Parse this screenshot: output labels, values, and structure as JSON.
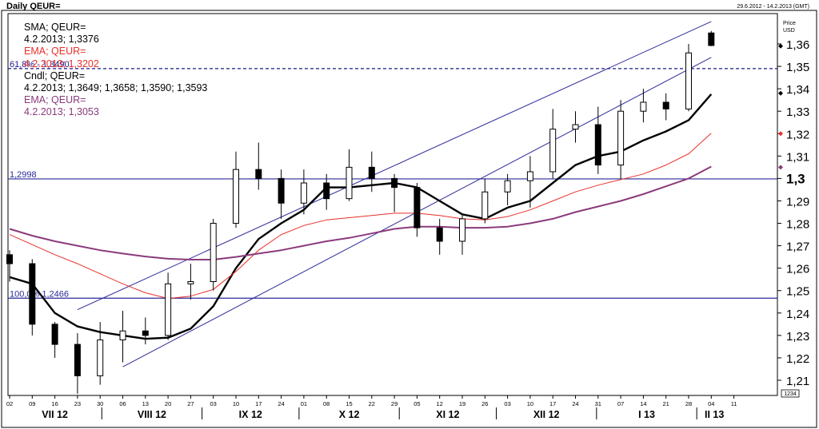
{
  "header": {
    "title": "Daily QEUR=",
    "date_range": "29.6.2012 - 14.2.2013 (GMT)",
    "price_label": "Price",
    "currency_label": "USD"
  },
  "legend": [
    {
      "name": "SMA; QEUR=",
      "value": "4.2.2013; 1,3376",
      "color": "#000000"
    },
    {
      "name": "EMA; QEUR=",
      "value": "4.2.2013; 1,3202",
      "color": "#e8302a"
    },
    {
      "name": "Cndl; QEUR=",
      "value": "4.2.2013; 1,3649; 1,3658; 1,3590; 1,3593",
      "color": "#000000"
    },
    {
      "name": "EMA; QEUR=",
      "value": "4.2.2013; 1,3053",
      "color": "#8b3a7c"
    }
  ],
  "chart_data": {
    "type": "candlestick",
    "y_label": "Price USD",
    "ylim": [
      1.2,
      1.37
    ],
    "y_ticks": [
      "1,21",
      "1,22",
      "1,23",
      "1,24",
      "1,25",
      "1,26",
      "1,27",
      "1,28",
      "1,29",
      "1,3",
      "1,31",
      "1,32",
      "1,33",
      "1,34",
      "1,35",
      "1,36"
    ],
    "x_day_ticks": [
      "02",
      "09",
      "16",
      "23",
      "30",
      "06",
      "13",
      "20",
      "27",
      "03",
      "10",
      "17",
      "24",
      "01",
      "08",
      "15",
      "22",
      "29",
      "05",
      "12",
      "19",
      "26",
      "03",
      "10",
      "17",
      "24",
      "31",
      "07",
      "14",
      "21",
      "28",
      "04",
      "11"
    ],
    "x_month_labels": [
      "VII 12",
      "VIII 12",
      "IX 12",
      "X 12",
      "XI 12",
      "XII 12",
      "I 13",
      "II 13"
    ],
    "corner_label": "1234",
    "horizontal_lines": [
      {
        "label": "61,8% - 1,3490",
        "value": 1.349,
        "style": "dashed",
        "color": "#1a1a8c"
      },
      {
        "label": "1,2998",
        "value": 1.2998,
        "style": "solid",
        "color": "#2a2a9a"
      },
      {
        "label": "100,0% 1,2466",
        "value": 1.2466,
        "style": "solid",
        "color": "#2a2a9a"
      }
    ],
    "trend_channel": {
      "upper": [
        [
          "2012-07-23",
          1.2415
        ],
        [
          "2013-02-04",
          1.37
        ]
      ],
      "lower": [
        [
          "2012-08-06",
          1.216
        ],
        [
          "2013-02-04",
          1.354
        ]
      ],
      "color": "#2a2a9a"
    },
    "last_value_markers": [
      {
        "value": 1.359,
        "color": "#000000"
      },
      {
        "value": 1.338,
        "color": "#000000"
      },
      {
        "value": 1.32,
        "color": "#e8302a"
      },
      {
        "value": 1.305,
        "color": "#8b3a7c"
      }
    ],
    "series": [
      {
        "name": "SMA; QEUR=",
        "color": "#000000",
        "kind": "line",
        "points": [
          [
            "2012-07-02",
            1.256
          ],
          [
            "2012-07-09",
            1.253
          ],
          [
            "2012-07-16",
            1.24
          ],
          [
            "2012-07-23",
            1.234
          ],
          [
            "2012-07-30",
            1.2315
          ],
          [
            "2012-08-06",
            1.23
          ],
          [
            "2012-08-13",
            1.2285
          ],
          [
            "2012-08-20",
            1.229
          ],
          [
            "2012-08-27",
            1.233
          ],
          [
            "2012-09-03",
            1.243
          ],
          [
            "2012-09-10",
            1.26
          ],
          [
            "2012-09-17",
            1.273
          ],
          [
            "2012-09-24",
            1.28
          ],
          [
            "2012-10-01",
            1.286
          ],
          [
            "2012-10-08",
            1.296
          ],
          [
            "2012-10-15",
            1.296
          ],
          [
            "2012-10-22",
            1.297
          ],
          [
            "2012-10-29",
            1.298
          ],
          [
            "2012-11-05",
            1.296
          ],
          [
            "2012-11-12",
            1.29
          ],
          [
            "2012-11-19",
            1.284
          ],
          [
            "2012-11-26",
            1.282
          ],
          [
            "2012-12-03",
            1.287
          ],
          [
            "2012-12-10",
            1.29
          ],
          [
            "2012-12-17",
            1.298
          ],
          [
            "2012-12-24",
            1.306
          ],
          [
            "2012-12-31",
            1.31
          ],
          [
            "2013-01-07",
            1.312
          ],
          [
            "2013-01-14",
            1.317
          ],
          [
            "2013-01-21",
            1.321
          ],
          [
            "2013-01-28",
            1.326
          ],
          [
            "2013-02-04",
            1.3376
          ]
        ]
      },
      {
        "name": "EMA; QEUR=",
        "color": "#e8302a",
        "kind": "line",
        "points": [
          [
            "2012-07-02",
            1.275
          ],
          [
            "2012-07-09",
            1.2705
          ],
          [
            "2012-07-16",
            1.266
          ],
          [
            "2012-07-23",
            1.262
          ],
          [
            "2012-07-30",
            1.2575
          ],
          [
            "2012-08-06",
            1.253
          ],
          [
            "2012-08-13",
            1.249
          ],
          [
            "2012-08-20",
            1.2465
          ],
          [
            "2012-08-27",
            1.2475
          ],
          [
            "2012-09-03",
            1.2505
          ],
          [
            "2012-09-10",
            1.2585
          ],
          [
            "2012-09-17",
            1.268
          ],
          [
            "2012-09-24",
            1.275
          ],
          [
            "2012-10-01",
            1.279
          ],
          [
            "2012-10-08",
            1.2815
          ],
          [
            "2012-10-15",
            1.2825
          ],
          [
            "2012-10-22",
            1.2835
          ],
          [
            "2012-10-29",
            1.2845
          ],
          [
            "2012-11-05",
            1.2845
          ],
          [
            "2012-11-12",
            1.2835
          ],
          [
            "2012-11-19",
            1.282
          ],
          [
            "2012-11-26",
            1.2815
          ],
          [
            "2012-12-03",
            1.283
          ],
          [
            "2012-12-10",
            1.286
          ],
          [
            "2012-12-17",
            1.29
          ],
          [
            "2012-12-24",
            1.294
          ],
          [
            "2012-12-31",
            1.297
          ],
          [
            "2013-01-07",
            1.2995
          ],
          [
            "2013-01-14",
            1.302
          ],
          [
            "2013-01-21",
            1.306
          ],
          [
            "2013-01-28",
            1.311
          ],
          [
            "2013-02-04",
            1.3202
          ]
        ]
      },
      {
        "name": "EMA; QEUR=",
        "color": "#8b3a7c",
        "kind": "line",
        "points": [
          [
            "2012-07-02",
            1.2775
          ],
          [
            "2012-07-09",
            1.2745
          ],
          [
            "2012-07-16",
            1.272
          ],
          [
            "2012-07-23",
            1.27
          ],
          [
            "2012-07-30",
            1.268
          ],
          [
            "2012-08-06",
            1.2665
          ],
          [
            "2012-08-13",
            1.2652
          ],
          [
            "2012-08-20",
            1.2642
          ],
          [
            "2012-08-27",
            1.2638
          ],
          [
            "2012-09-03",
            1.2638
          ],
          [
            "2012-09-10",
            1.265
          ],
          [
            "2012-09-17",
            1.2665
          ],
          [
            "2012-09-24",
            1.268
          ],
          [
            "2012-10-01",
            1.27
          ],
          [
            "2012-10-08",
            1.272
          ],
          [
            "2012-10-15",
            1.2735
          ],
          [
            "2012-10-22",
            1.2755
          ],
          [
            "2012-10-29",
            1.2775
          ],
          [
            "2012-11-05",
            1.2785
          ],
          [
            "2012-11-12",
            1.2785
          ],
          [
            "2012-11-19",
            1.278
          ],
          [
            "2012-11-26",
            1.278
          ],
          [
            "2012-12-03",
            1.2785
          ],
          [
            "2012-12-10",
            1.28
          ],
          [
            "2012-12-17",
            1.282
          ],
          [
            "2012-12-24",
            1.285
          ],
          [
            "2012-12-31",
            1.2875
          ],
          [
            "2013-01-07",
            1.29
          ],
          [
            "2013-01-14",
            1.293
          ],
          [
            "2013-01-21",
            1.2965
          ],
          [
            "2013-01-28",
            1.3
          ],
          [
            "2013-02-04",
            1.3053
          ]
        ]
      },
      {
        "name": "Cndl; QEUR=",
        "color": "#000000",
        "kind": "candles",
        "ohlc": [
          [
            "2012-07-02",
            1.266,
            1.268,
            1.254,
            1.262
          ],
          [
            "2012-07-09",
            1.262,
            1.264,
            1.23,
            1.235
          ],
          [
            "2012-07-16",
            1.235,
            1.236,
            1.22,
            1.226
          ],
          [
            "2012-07-23",
            1.226,
            1.231,
            1.204,
            1.212
          ],
          [
            "2012-07-30",
            1.212,
            1.236,
            1.208,
            1.228
          ],
          [
            "2012-08-06",
            1.228,
            1.241,
            1.218,
            1.232
          ],
          [
            "2012-08-13",
            1.232,
            1.238,
            1.226,
            1.23
          ],
          [
            "2012-08-20",
            1.23,
            1.258,
            1.228,
            1.253
          ],
          [
            "2012-08-27",
            1.253,
            1.262,
            1.246,
            1.254
          ],
          [
            "2012-09-03",
            1.254,
            1.282,
            1.25,
            1.28
          ],
          [
            "2012-09-10",
            1.28,
            1.312,
            1.278,
            1.304
          ],
          [
            "2012-09-17",
            1.304,
            1.316,
            1.295,
            1.3
          ],
          [
            "2012-09-24",
            1.3,
            1.304,
            1.282,
            1.289
          ],
          [
            "2012-10-01",
            1.289,
            1.304,
            1.284,
            1.298
          ],
          [
            "2012-10-08",
            1.298,
            1.302,
            1.286,
            1.291
          ],
          [
            "2012-10-15",
            1.291,
            1.313,
            1.29,
            1.305
          ],
          [
            "2012-10-22",
            1.305,
            1.312,
            1.294,
            1.3
          ],
          [
            "2012-10-29",
            1.3,
            1.302,
            1.285,
            1.296
          ],
          [
            "2012-11-05",
            1.296,
            1.298,
            1.274,
            1.278
          ],
          [
            "2012-11-12",
            1.278,
            1.282,
            1.266,
            1.272
          ],
          [
            "2012-11-19",
            1.272,
            1.284,
            1.266,
            1.282
          ],
          [
            "2012-11-26",
            1.282,
            1.3,
            1.28,
            1.294
          ],
          [
            "2012-12-03",
            1.294,
            1.302,
            1.288,
            1.299
          ],
          [
            "2012-12-10",
            1.299,
            1.31,
            1.287,
            1.303
          ],
          [
            "2012-12-17",
            1.303,
            1.331,
            1.3,
            1.322
          ],
          [
            "2012-12-24",
            1.322,
            1.33,
            1.316,
            1.324
          ],
          [
            "2012-12-31",
            1.324,
            1.332,
            1.302,
            1.306
          ],
          [
            "2013-01-07",
            1.306,
            1.335,
            1.3,
            1.33
          ],
          [
            "2013-01-14",
            1.33,
            1.34,
            1.325,
            1.334
          ],
          [
            "2013-01-21",
            1.334,
            1.338,
            1.326,
            1.331
          ],
          [
            "2013-01-28",
            1.331,
            1.36,
            1.33,
            1.356
          ],
          [
            "2013-02-04",
            1.3649,
            1.3658,
            1.359,
            1.3593
          ]
        ]
      }
    ]
  }
}
